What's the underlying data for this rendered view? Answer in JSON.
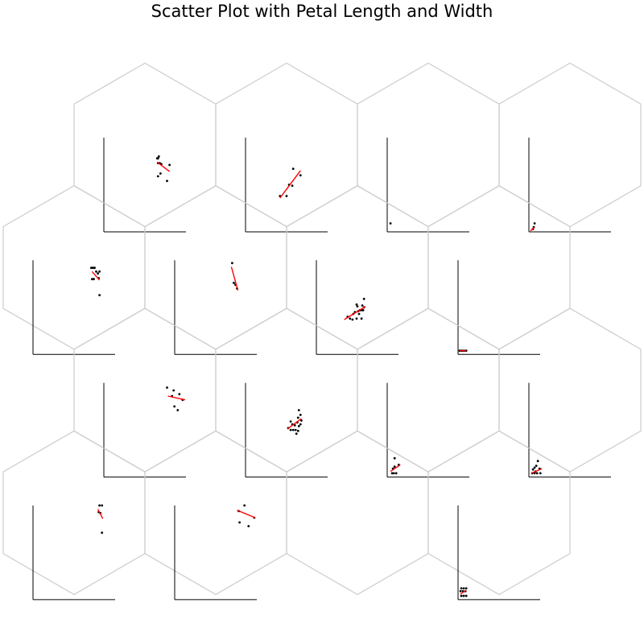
{
  "chart_data": {
    "type": "scatter",
    "title": "Scatter Plot with Petal Length and Width",
    "colors": {
      "points": "#000000",
      "fit_line": "#ff0000",
      "hexagon_border": "#cccccc",
      "axes": "#000000"
    },
    "axes_shown": "left-bottom spines only, no ticks or labels",
    "grid": false,
    "legend": "none",
    "cells": [
      {
        "row": 0,
        "col": 0,
        "has_axes": true,
        "points": [
          [
            0.65,
            0.78
          ],
          [
            0.66,
            0.78
          ],
          [
            0.67,
            0.8
          ],
          [
            0.66,
            0.73
          ],
          [
            0.68,
            0.73
          ],
          [
            0.7,
            0.72
          ],
          [
            0.8,
            0.71
          ],
          [
            0.69,
            0.62
          ],
          [
            0.66,
            0.59
          ],
          [
            0.77,
            0.54
          ]
        ],
        "fit": [
          [
            0.65,
            0.74
          ],
          [
            0.8,
            0.64
          ]
        ]
      },
      {
        "row": 0,
        "col": 1,
        "has_axes": true,
        "points": [
          [
            0.58,
            0.67
          ],
          [
            0.67,
            0.6
          ],
          [
            0.53,
            0.5
          ],
          [
            0.57,
            0.49
          ],
          [
            0.5,
            0.38
          ],
          [
            0.42,
            0.38
          ]
        ],
        "fit": [
          [
            0.42,
            0.36
          ],
          [
            0.67,
            0.65
          ]
        ]
      },
      {
        "row": 0,
        "col": 2,
        "has_axes": true,
        "points": [
          [
            0.04,
            0.09
          ]
        ],
        "fit": null
      },
      {
        "row": 0,
        "col": 3,
        "has_axes": true,
        "points": [
          [
            0.07,
            0.09
          ],
          [
            0.06,
            0.05
          ],
          [
            0.05,
            0.03
          ]
        ],
        "fit": [
          [
            0.02,
            0.01
          ],
          [
            0.07,
            0.05
          ]
        ]
      },
      {
        "row": 1,
        "col": 0,
        "has_axes": true,
        "points": [
          [
            0.71,
            0.92
          ],
          [
            0.73,
            0.92
          ],
          [
            0.75,
            0.92
          ],
          [
            0.77,
            0.88
          ],
          [
            0.79,
            0.86
          ],
          [
            0.81,
            0.88
          ],
          [
            0.72,
            0.8
          ],
          [
            0.74,
            0.8
          ],
          [
            0.8,
            0.81
          ],
          [
            0.81,
            0.63
          ]
        ],
        "fit": [
          [
            0.72,
            0.88
          ],
          [
            0.81,
            0.79
          ]
        ]
      },
      {
        "row": 1,
        "col": 1,
        "has_axes": true,
        "points": [
          [
            0.7,
            0.97
          ],
          [
            0.72,
            0.76
          ],
          [
            0.74,
            0.74
          ],
          [
            0.76,
            0.7
          ]
        ],
        "fit": [
          [
            0.69,
            0.93
          ],
          [
            0.77,
            0.68
          ]
        ]
      },
      {
        "row": 1,
        "col": 2,
        "has_axes": true,
        "points": [
          [
            0.58,
            0.59
          ],
          [
            0.49,
            0.53
          ],
          [
            0.5,
            0.51
          ],
          [
            0.56,
            0.52
          ],
          [
            0.51,
            0.46
          ],
          [
            0.55,
            0.47
          ],
          [
            0.58,
            0.5
          ],
          [
            0.38,
            0.4
          ],
          [
            0.41,
            0.38
          ],
          [
            0.45,
            0.43
          ],
          [
            0.44,
            0.37
          ],
          [
            0.49,
            0.38
          ],
          [
            0.47,
            0.45
          ],
          [
            0.53,
            0.47
          ],
          [
            0.55,
            0.38
          ],
          [
            0.52,
            0.43
          ],
          [
            0.57,
            0.47
          ]
        ],
        "fit": [
          [
            0.34,
            0.37
          ],
          [
            0.6,
            0.51
          ]
        ]
      },
      {
        "row": 1,
        "col": 3,
        "has_axes": true,
        "points": [
          [
            0.02,
            0.04
          ],
          [
            0.04,
            0.04
          ],
          [
            0.06,
            0.04
          ],
          [
            0.08,
            0.04
          ],
          [
            0.1,
            0.04
          ]
        ],
        "fit": [
          [
            0.02,
            0.04
          ],
          [
            0.1,
            0.04
          ]
        ]
      },
      {
        "row": 2,
        "col": 0,
        "has_axes": true,
        "points": [
          [
            0.77,
            0.95
          ],
          [
            0.85,
            0.92
          ],
          [
            0.83,
            0.86
          ],
          [
            0.92,
            0.88
          ],
          [
            0.96,
            0.82
          ],
          [
            0.86,
            0.75
          ],
          [
            0.9,
            0.71
          ]
        ],
        "fit": [
          [
            0.78,
            0.86
          ],
          [
            0.99,
            0.82
          ]
        ]
      },
      {
        "row": 2,
        "col": 1,
        "has_axes": true,
        "points": [
          [
            0.65,
            0.71
          ],
          [
            0.67,
            0.66
          ],
          [
            0.64,
            0.63
          ],
          [
            0.68,
            0.6
          ],
          [
            0.67,
            0.56
          ],
          [
            0.63,
            0.58
          ],
          [
            0.6,
            0.55
          ],
          [
            0.57,
            0.56
          ],
          [
            0.55,
            0.5
          ],
          [
            0.58,
            0.5
          ],
          [
            0.61,
            0.5
          ],
          [
            0.64,
            0.49
          ],
          [
            0.52,
            0.52
          ],
          [
            0.55,
            0.59
          ],
          [
            0.65,
            0.54
          ],
          [
            0.62,
            0.46
          ]
        ],
        "fit": [
          [
            0.51,
            0.51
          ],
          [
            0.68,
            0.62
          ]
        ]
      },
      {
        "row": 2,
        "col": 2,
        "has_axes": true,
        "points": [
          [
            0.09,
            0.2
          ],
          [
            0.09,
            0.11
          ],
          [
            0.06,
            0.04
          ],
          [
            0.08,
            0.04
          ],
          [
            0.11,
            0.04
          ],
          [
            0.14,
            0.13
          ],
          [
            0.07,
            0.09
          ]
        ],
        "fit": [
          [
            0.04,
            0.06
          ],
          [
            0.16,
            0.13
          ]
        ]
      },
      {
        "row": 2,
        "col": 3,
        "has_axes": true,
        "points": [
          [
            0.11,
            0.17
          ],
          [
            0.09,
            0.12
          ],
          [
            0.07,
            0.1
          ],
          [
            0.05,
            0.08
          ],
          [
            0.04,
            0.04
          ],
          [
            0.07,
            0.04
          ],
          [
            0.1,
            0.04
          ],
          [
            0.14,
            0.04
          ],
          [
            0.13,
            0.09
          ],
          [
            0.08,
            0.06
          ]
        ],
        "fit": [
          [
            0.03,
            0.04
          ],
          [
            0.16,
            0.09
          ]
        ]
      },
      {
        "row": 3,
        "col": 0,
        "has_axes": true,
        "points": [
          [
            0.81,
            1.0
          ],
          [
            0.84,
            1.0
          ],
          [
            0.8,
            0.93
          ],
          [
            0.82,
            0.92
          ],
          [
            0.84,
            0.71
          ]
        ],
        "fit": [
          [
            0.79,
            0.96
          ],
          [
            0.85,
            0.86
          ]
        ]
      },
      {
        "row": 3,
        "col": 1,
        "has_axes": true,
        "points": [
          [
            0.85,
            1.0
          ],
          [
            0.78,
            0.94
          ],
          [
            0.97,
            0.87
          ],
          [
            0.79,
            0.82
          ],
          [
            0.9,
            0.78
          ]
        ],
        "fit": [
          [
            0.76,
            0.95
          ],
          [
            0.98,
            0.87
          ]
        ]
      },
      {
        "row": 3,
        "col": 2,
        "has_axes": false,
        "points": [],
        "fit": null
      },
      {
        "row": 3,
        "col": 3,
        "has_axes": true,
        "points": [
          [
            0.04,
            0.12
          ],
          [
            0.07,
            0.12
          ],
          [
            0.1,
            0.12
          ],
          [
            0.03,
            0.09
          ],
          [
            0.06,
            0.09
          ],
          [
            0.09,
            0.09
          ],
          [
            0.04,
            0.04
          ],
          [
            0.07,
            0.04
          ],
          [
            0.1,
            0.04
          ]
        ],
        "fit": [
          [
            0.03,
            0.06
          ],
          [
            0.1,
            0.1
          ]
        ]
      }
    ]
  }
}
